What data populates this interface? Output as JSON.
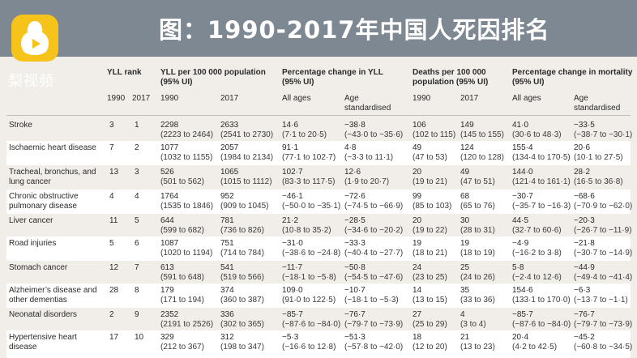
{
  "banner": {
    "title": "图：1990-2017年中国人死因排名",
    "logo_text": "梨视频",
    "logo_icon": "pear-play-icon",
    "bg_color": "#7d8892",
    "logo_color": "#f6c31b"
  },
  "headers": {
    "yll_rank": "YLL rank",
    "yll_per": "YLL per 100 000 population",
    "yll_per_ci": "(95% UI)",
    "pct_yll": "Percentage change in YLL",
    "pct_yll_ci": "(95% UI)",
    "deaths": "Deaths per 100 000",
    "deaths2": "population (95% UI)",
    "pct_mort": "Percentage change in mortality",
    "pct_mort_ci": "(95% UI)"
  },
  "subheaders": {
    "rank_1990": "1990",
    "rank_2017": "2017",
    "yll_1990": "1990",
    "yll_2017": "2017",
    "pct_yll_all": "All ages",
    "pct_yll_age": "Age",
    "pct_yll_age2": "standardised",
    "deaths_1990": "1990",
    "deaths_2017": "2017",
    "pct_mort_all": "All ages",
    "pct_mort_age": "Age",
    "pct_mort_age2": "standardised"
  },
  "rows": [
    {
      "cause": "Stroke",
      "r1990": "3",
      "r2017": "1",
      "y1990": "2298",
      "y1990ci": "(2223 to 2464)",
      "y2017": "2633",
      "y2017ci": "(2541 to 2730)",
      "pya": "14·6",
      "pyaci": "(7·1 to 20·5)",
      "pys": "−38·8",
      "pysci": "(−43·0 to −35·6)",
      "d1990": "106",
      "d1990ci": "(102 to 115)",
      "d2017": "149",
      "d2017ci": "(145 to 155)",
      "pma": "41·0",
      "pmaci": "(30·6 to 48·3)",
      "pms": "−33·5",
      "pmsci": "(−38·7 to −30·1)"
    },
    {
      "cause": "Ischaemic heart disease",
      "r1990": "7",
      "r2017": "2",
      "y1990": "1077",
      "y1990ci": "(1032 to 1155)",
      "y2017": "2057",
      "y2017ci": "(1984 to 2134)",
      "pya": "91·1",
      "pyaci": "(77·1 to 102·7)",
      "pys": "4·8",
      "pysci": "(−3·3 to 11·1)",
      "d1990": "49",
      "d1990ci": "(47 to 53)",
      "d2017": "124",
      "d2017ci": "(120 to 128)",
      "pma": "155·4",
      "pmaci": "(134·4 to 170·5)",
      "pms": "20·6",
      "pmsci": "(10·1 to 27·5)"
    },
    {
      "cause": "Tracheal, bronchus, and lung cancer",
      "r1990": "13",
      "r2017": "3",
      "y1990": "526",
      "y1990ci": "(501 to 562)",
      "y2017": "1065",
      "y2017ci": "(1015 to 1112)",
      "pya": "102·7",
      "pyaci": "(83·3 to 117·5)",
      "pys": "12·6",
      "pysci": "(1·9 to 20·7)",
      "d1990": "20",
      "d1990ci": "(19 to 21)",
      "d2017": "49",
      "d2017ci": "(47 to 51)",
      "pma": "144·0",
      "pmaci": "(121·4 to 161·1)",
      "pms": "28·2",
      "pmsci": "(16·5 to 36·8)"
    },
    {
      "cause": "Chronic obstructive pulmonary disease",
      "r1990": "4",
      "r2017": "4",
      "y1990": "1764",
      "y1990ci": "(1535 to 1846)",
      "y2017": "952",
      "y2017ci": "(909 to 1045)",
      "pya": "−46·1",
      "pyaci": "(−50·0 to −35·1)",
      "pys": "−72·6",
      "pysci": "(−74·5 to −66·9)",
      "d1990": "99",
      "d1990ci": "(85 to 103)",
      "d2017": "68",
      "d2017ci": "(65 to 76)",
      "pma": "−30·7",
      "pmaci": "(−35·7 to −16·3)",
      "pms": "−68·6",
      "pmsci": "(−70·9 to −62·0)"
    },
    {
      "cause": "Liver cancer",
      "r1990": "11",
      "r2017": "5",
      "y1990": "644",
      "y1990ci": "(599 to 682)",
      "y2017": "781",
      "y2017ci": "(736 to 826)",
      "pya": "21·2",
      "pyaci": "(10·8 to 35·2)",
      "pys": "−28·5",
      "pysci": "(−34·6 to −20·2)",
      "d1990": "20",
      "d1990ci": "(19 to 22)",
      "d2017": "30",
      "d2017ci": "(28 to 31)",
      "pma": "44·5",
      "pmaci": "(32·7 to 60·6)",
      "pms": "−20·3",
      "pmsci": "(−26·7 to −11·9)"
    },
    {
      "cause": "Road injuries",
      "r1990": "5",
      "r2017": "6",
      "y1990": "1087",
      "y1990ci": "(1020 to 1194)",
      "y2017": "751",
      "y2017ci": "(714 to 784)",
      "pya": "−31·0",
      "pyaci": "(−38·6 to −24·8)",
      "pys": "−33·3",
      "pysci": "(−40·4 to −27·7)",
      "d1990": "19",
      "d1990ci": "(18 to 21)",
      "d2017": "19",
      "d2017ci": "(18 to 19)",
      "pma": "−4·9",
      "pmaci": "(−16·2 to 3·8)",
      "pms": "−21·8",
      "pmsci": "(−30·7 to −14·9)"
    },
    {
      "cause": "Stomach cancer",
      "r1990": "12",
      "r2017": "7",
      "y1990": "613",
      "y1990ci": "(591 to 648)",
      "y2017": "541",
      "y2017ci": "(519 to 566)",
      "pya": "−11·7",
      "pyaci": "(−18·1 to −5·8)",
      "pys": "−50·8",
      "pysci": "(−54·5 to −47·6)",
      "d1990": "24",
      "d1990ci": "(23 to 25)",
      "d2017": "25",
      "d2017ci": "(24 to 26)",
      "pma": "5·8",
      "pmaci": "(−2·4 to 12·6)",
      "pms": "−44·9",
      "pmsci": "(−49·4 to −41·4)"
    },
    {
      "cause": "Alzheimer’s disease and other dementias",
      "r1990": "28",
      "r2017": "8",
      "y1990": "179",
      "y1990ci": "(171 to 194)",
      "y2017": "374",
      "y2017ci": "(360 to 387)",
      "pya": "109·0",
      "pyaci": "(91·0 to 122·5)",
      "pys": "−10·7",
      "pysci": "(−18·1 to −5·3)",
      "d1990": "14",
      "d1990ci": "(13 to 15)",
      "d2017": "35",
      "d2017ci": "(33 to 36)",
      "pma": "154·6",
      "pmaci": "(133·1 to 170·0)",
      "pms": "−6·3",
      "pmsci": "(−13·7 to −1·1)"
    },
    {
      "cause": "Neonatal disorders",
      "r1990": "2",
      "r2017": "9",
      "y1990": "2352",
      "y1990ci": "(2191 to 2526)",
      "y2017": "336",
      "y2017ci": "(302 to 365)",
      "pya": "−85·7",
      "pyaci": "(−87·6 to −84·0)",
      "pys": "−76·7",
      "pysci": "(−79·7 to −73·9)",
      "d1990": "27",
      "d1990ci": "(25 to 29)",
      "d2017": "4",
      "d2017ci": "(3 to 4)",
      "pma": "−85·7",
      "pmaci": "(−87·6 to −84·0)",
      "pms": "−76·7",
      "pmsci": "(−79·7 to −73·9)"
    },
    {
      "cause": "Hypertensive heart disease",
      "r1990": "17",
      "r2017": "10",
      "y1990": "329",
      "y1990ci": "(212 to 367)",
      "y2017": "312",
      "y2017ci": "(198 to 347)",
      "pya": "−5·3",
      "pyaci": "(−16·6 to 12·8)",
      "pys": "−51·3",
      "pysci": "(−57·8 to −42·0)",
      "d1990": "18",
      "d1990ci": "(12 to 20)",
      "d2017": "21",
      "d2017ci": "(13 to 23)",
      "pma": "20·4",
      "pmaci": "(4·2 to 42·5)",
      "pms": "−45·2",
      "pmsci": "(−60·8 to −34·5)"
    }
  ]
}
